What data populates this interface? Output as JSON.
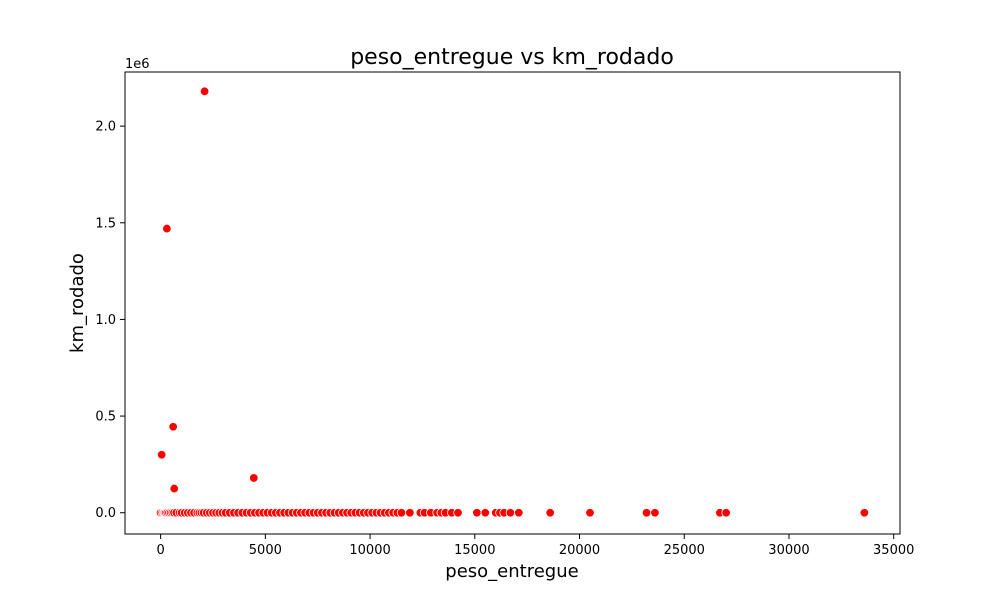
{
  "chart_data": {
    "type": "scatter",
    "title": "peso_entregue vs km_rodado",
    "xlabel": "peso_entregue",
    "ylabel": "km_rodado",
    "y_offset_label": "1e6",
    "y_scale_factor": 1000000,
    "xlim": [
      -1700,
      35300
    ],
    "ylim": [
      -0.11,
      2.28
    ],
    "x_ticks": [
      0,
      5000,
      10000,
      15000,
      20000,
      25000,
      30000,
      35000
    ],
    "x_tick_labels": [
      "0",
      "5000",
      "10000",
      "15000",
      "20000",
      "25000",
      "30000",
      "35000"
    ],
    "y_ticks": [
      0.0,
      0.5,
      1.0,
      1.5,
      2.0
    ],
    "y_tick_labels": [
      "0.0",
      "0.5",
      "1.0",
      "1.5",
      "2.0"
    ],
    "grid": false,
    "marker_color": "#ff0000",
    "marker_edge_color": "#ffffff",
    "series": [
      {
        "x": [
          2100,
          300,
          600,
          50,
          650,
          4450,
          0,
          80,
          150,
          200,
          250,
          320,
          400,
          480,
          560,
          640,
          750,
          900,
          1000,
          1150,
          1300,
          1450,
          1600,
          1750,
          1850,
          1950,
          2050,
          2200,
          2350,
          2500,
          2650,
          2800,
          2950,
          3100,
          3300,
          3500,
          3700,
          3900,
          4100,
          4300,
          4500,
          4700,
          4900,
          5100,
          5300,
          5500,
          5700,
          5900,
          6100,
          6300,
          6500,
          6700,
          6900,
          7100,
          7300,
          7500,
          7700,
          7900,
          8100,
          8300,
          8500,
          8700,
          8900,
          9100,
          9300,
          9500,
          9700,
          9900,
          10100,
          10300,
          10500,
          10700,
          10900,
          11100,
          11300,
          11500,
          11900,
          12400,
          12600,
          12900,
          13200,
          13400,
          13600,
          13900,
          14200,
          15100,
          15500,
          16000,
          16200,
          16400,
          16700,
          17100,
          18600,
          20500,
          23200,
          23600,
          26700,
          27000,
          33600
        ],
        "y": [
          2.18,
          1.47,
          0.445,
          0.3,
          0.125,
          0.18,
          0,
          0,
          0,
          0,
          0,
          0,
          0,
          0,
          0,
          0,
          0,
          0,
          0,
          0,
          0,
          0,
          0,
          0,
          0,
          0,
          0,
          0,
          0,
          0,
          0,
          0,
          0,
          0,
          0,
          0,
          0,
          0,
          0,
          0,
          0,
          0,
          0,
          0,
          0,
          0,
          0,
          0,
          0,
          0,
          0,
          0,
          0,
          0,
          0,
          0,
          0,
          0,
          0,
          0,
          0,
          0,
          0,
          0,
          0,
          0,
          0,
          0,
          0,
          0,
          0,
          0,
          0,
          0,
          0,
          0,
          0,
          0,
          0,
          0,
          0,
          0,
          0,
          0,
          0,
          0,
          0,
          0,
          0,
          0,
          0,
          0,
          0,
          0,
          0,
          0,
          0,
          0,
          0
        ]
      }
    ]
  }
}
